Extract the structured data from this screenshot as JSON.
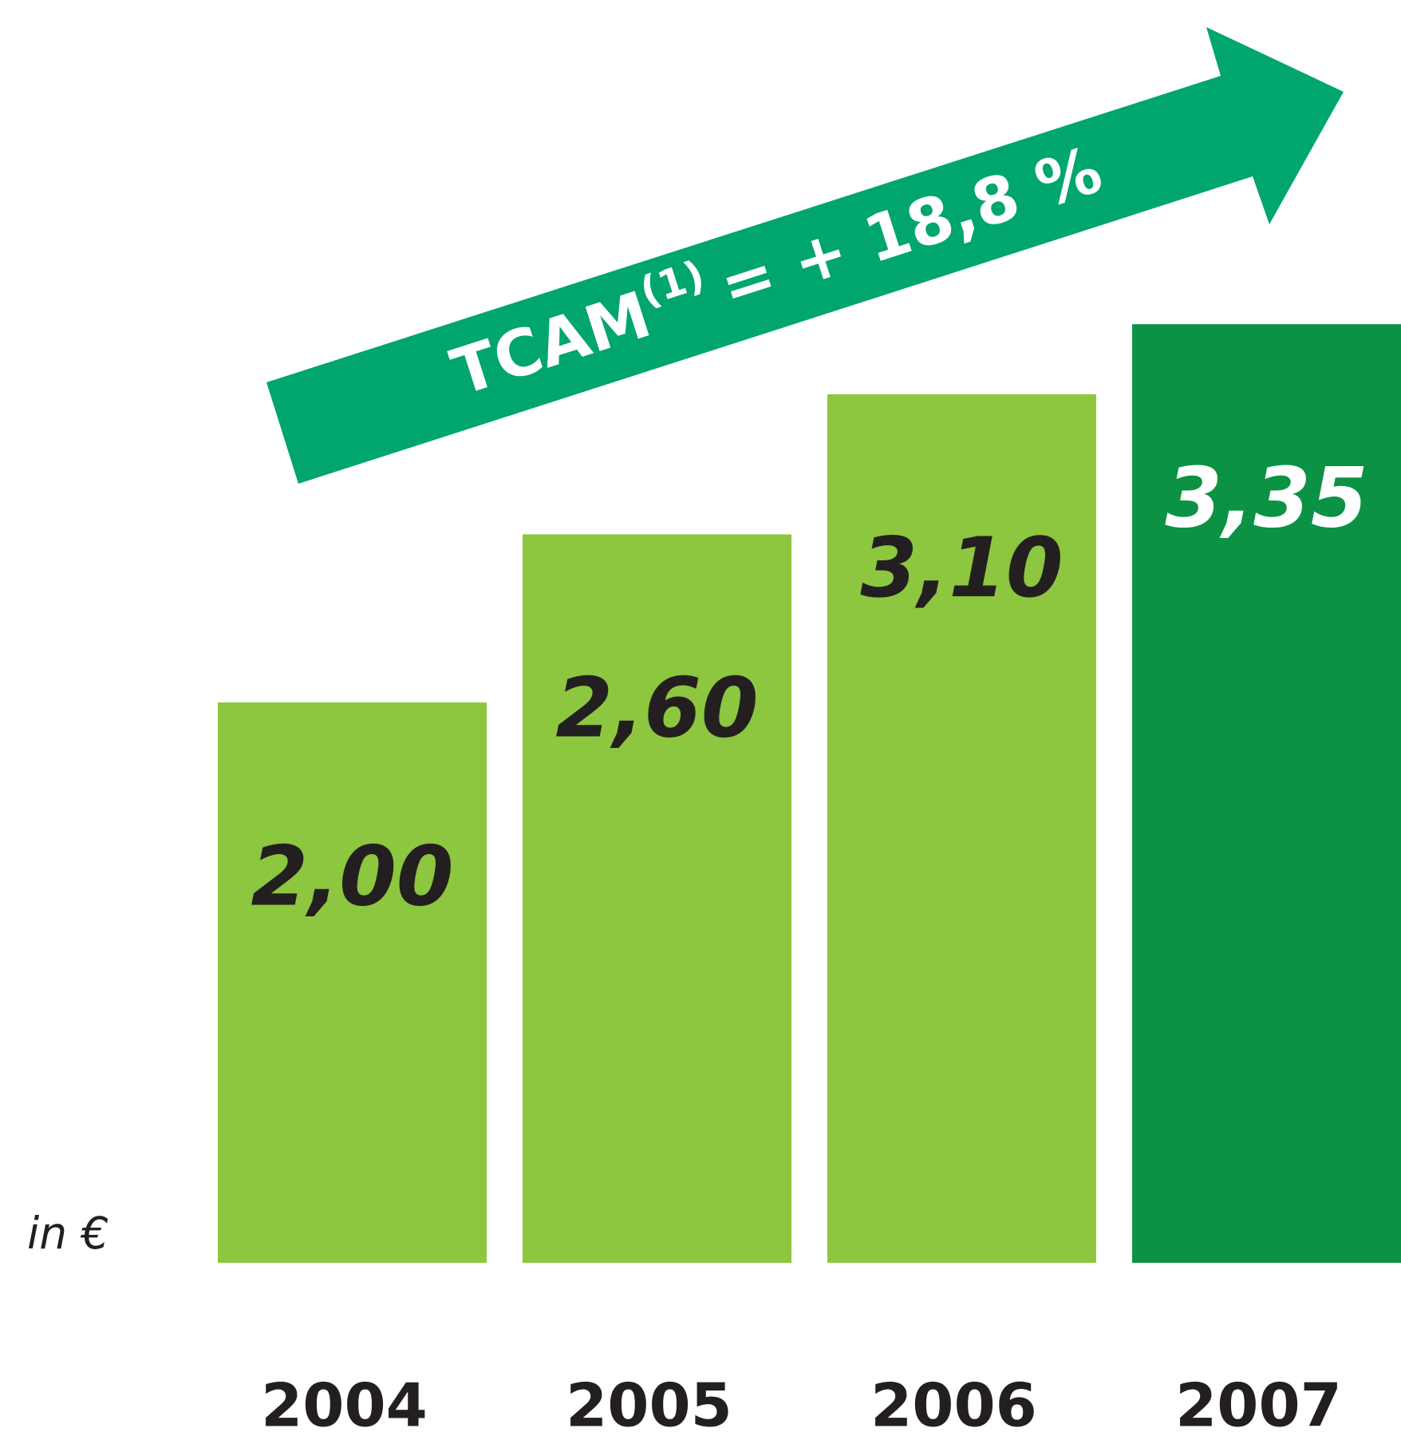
{
  "chart_data": {
    "type": "bar",
    "unit_label": "in €",
    "annotation": {
      "text": "TCAM",
      "superscript": "(1)",
      "rest": "= + 18,8 %"
    },
    "categories": [
      "2004",
      "2005",
      "2006",
      "2007"
    ],
    "values": [
      2.0,
      2.6,
      3.1,
      3.35
    ],
    "value_labels": [
      "2,00",
      "2,60",
      "3,10",
      "3,35"
    ],
    "colors": [
      "#8dc63f",
      "#8dc63f",
      "#8dc63f",
      "#0c9244"
    ],
    "label_colors": [
      "#231f20",
      "#231f20",
      "#231f20",
      "#ffffff"
    ],
    "arrow_color": "#00a66e"
  }
}
